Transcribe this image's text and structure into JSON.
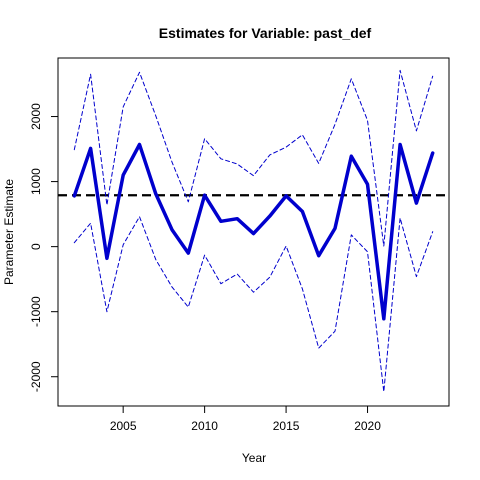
{
  "chart_data": {
    "type": "line",
    "title": "Estimates for Variable: past_def",
    "xlabel": "Year",
    "ylabel": "Parameter Estimate",
    "xlim": [
      2001,
      2025
    ],
    "ylim": [
      -2450,
      2900
    ],
    "x_ticks": [
      2005,
      2010,
      2015,
      2020
    ],
    "y_ticks": [
      -2000,
      -1000,
      0,
      1000,
      2000
    ],
    "grid": false,
    "x": [
      2002,
      2003,
      2004,
      2005,
      2006,
      2007,
      2008,
      2009,
      2010,
      2011,
      2012,
      2013,
      2014,
      2015,
      2016,
      2017,
      2018,
      2019,
      2020,
      2021,
      2022,
      2023,
      2024
    ],
    "series": [
      {
        "role": "estimate",
        "color": "#0000cd",
        "values": [
          780,
          1510,
          -180,
          1100,
          1570,
          810,
          260,
          -100,
          790,
          390,
          430,
          200,
          470,
          780,
          540,
          -140,
          280,
          1390,
          960,
          -1110,
          1570,
          670,
          1440
        ]
      },
      {
        "role": "upper-bound",
        "color": "#0000cd",
        "values": [
          1490,
          2650,
          640,
          2150,
          2680,
          2010,
          1300,
          690,
          1660,
          1350,
          1270,
          1090,
          1410,
          1530,
          1720,
          1280,
          1880,
          2580,
          1940,
          10,
          2710,
          1780,
          2620
        ]
      },
      {
        "role": "lower-bound",
        "color": "#0000cd",
        "values": [
          60,
          360,
          -1000,
          30,
          460,
          -200,
          -620,
          -930,
          -130,
          -570,
          -420,
          -700,
          -470,
          10,
          -650,
          -1560,
          -1300,
          180,
          -80,
          -2230,
          440,
          -460,
          230
        ]
      }
    ],
    "reference_line": {
      "value": 790,
      "color": "#000000"
    }
  }
}
